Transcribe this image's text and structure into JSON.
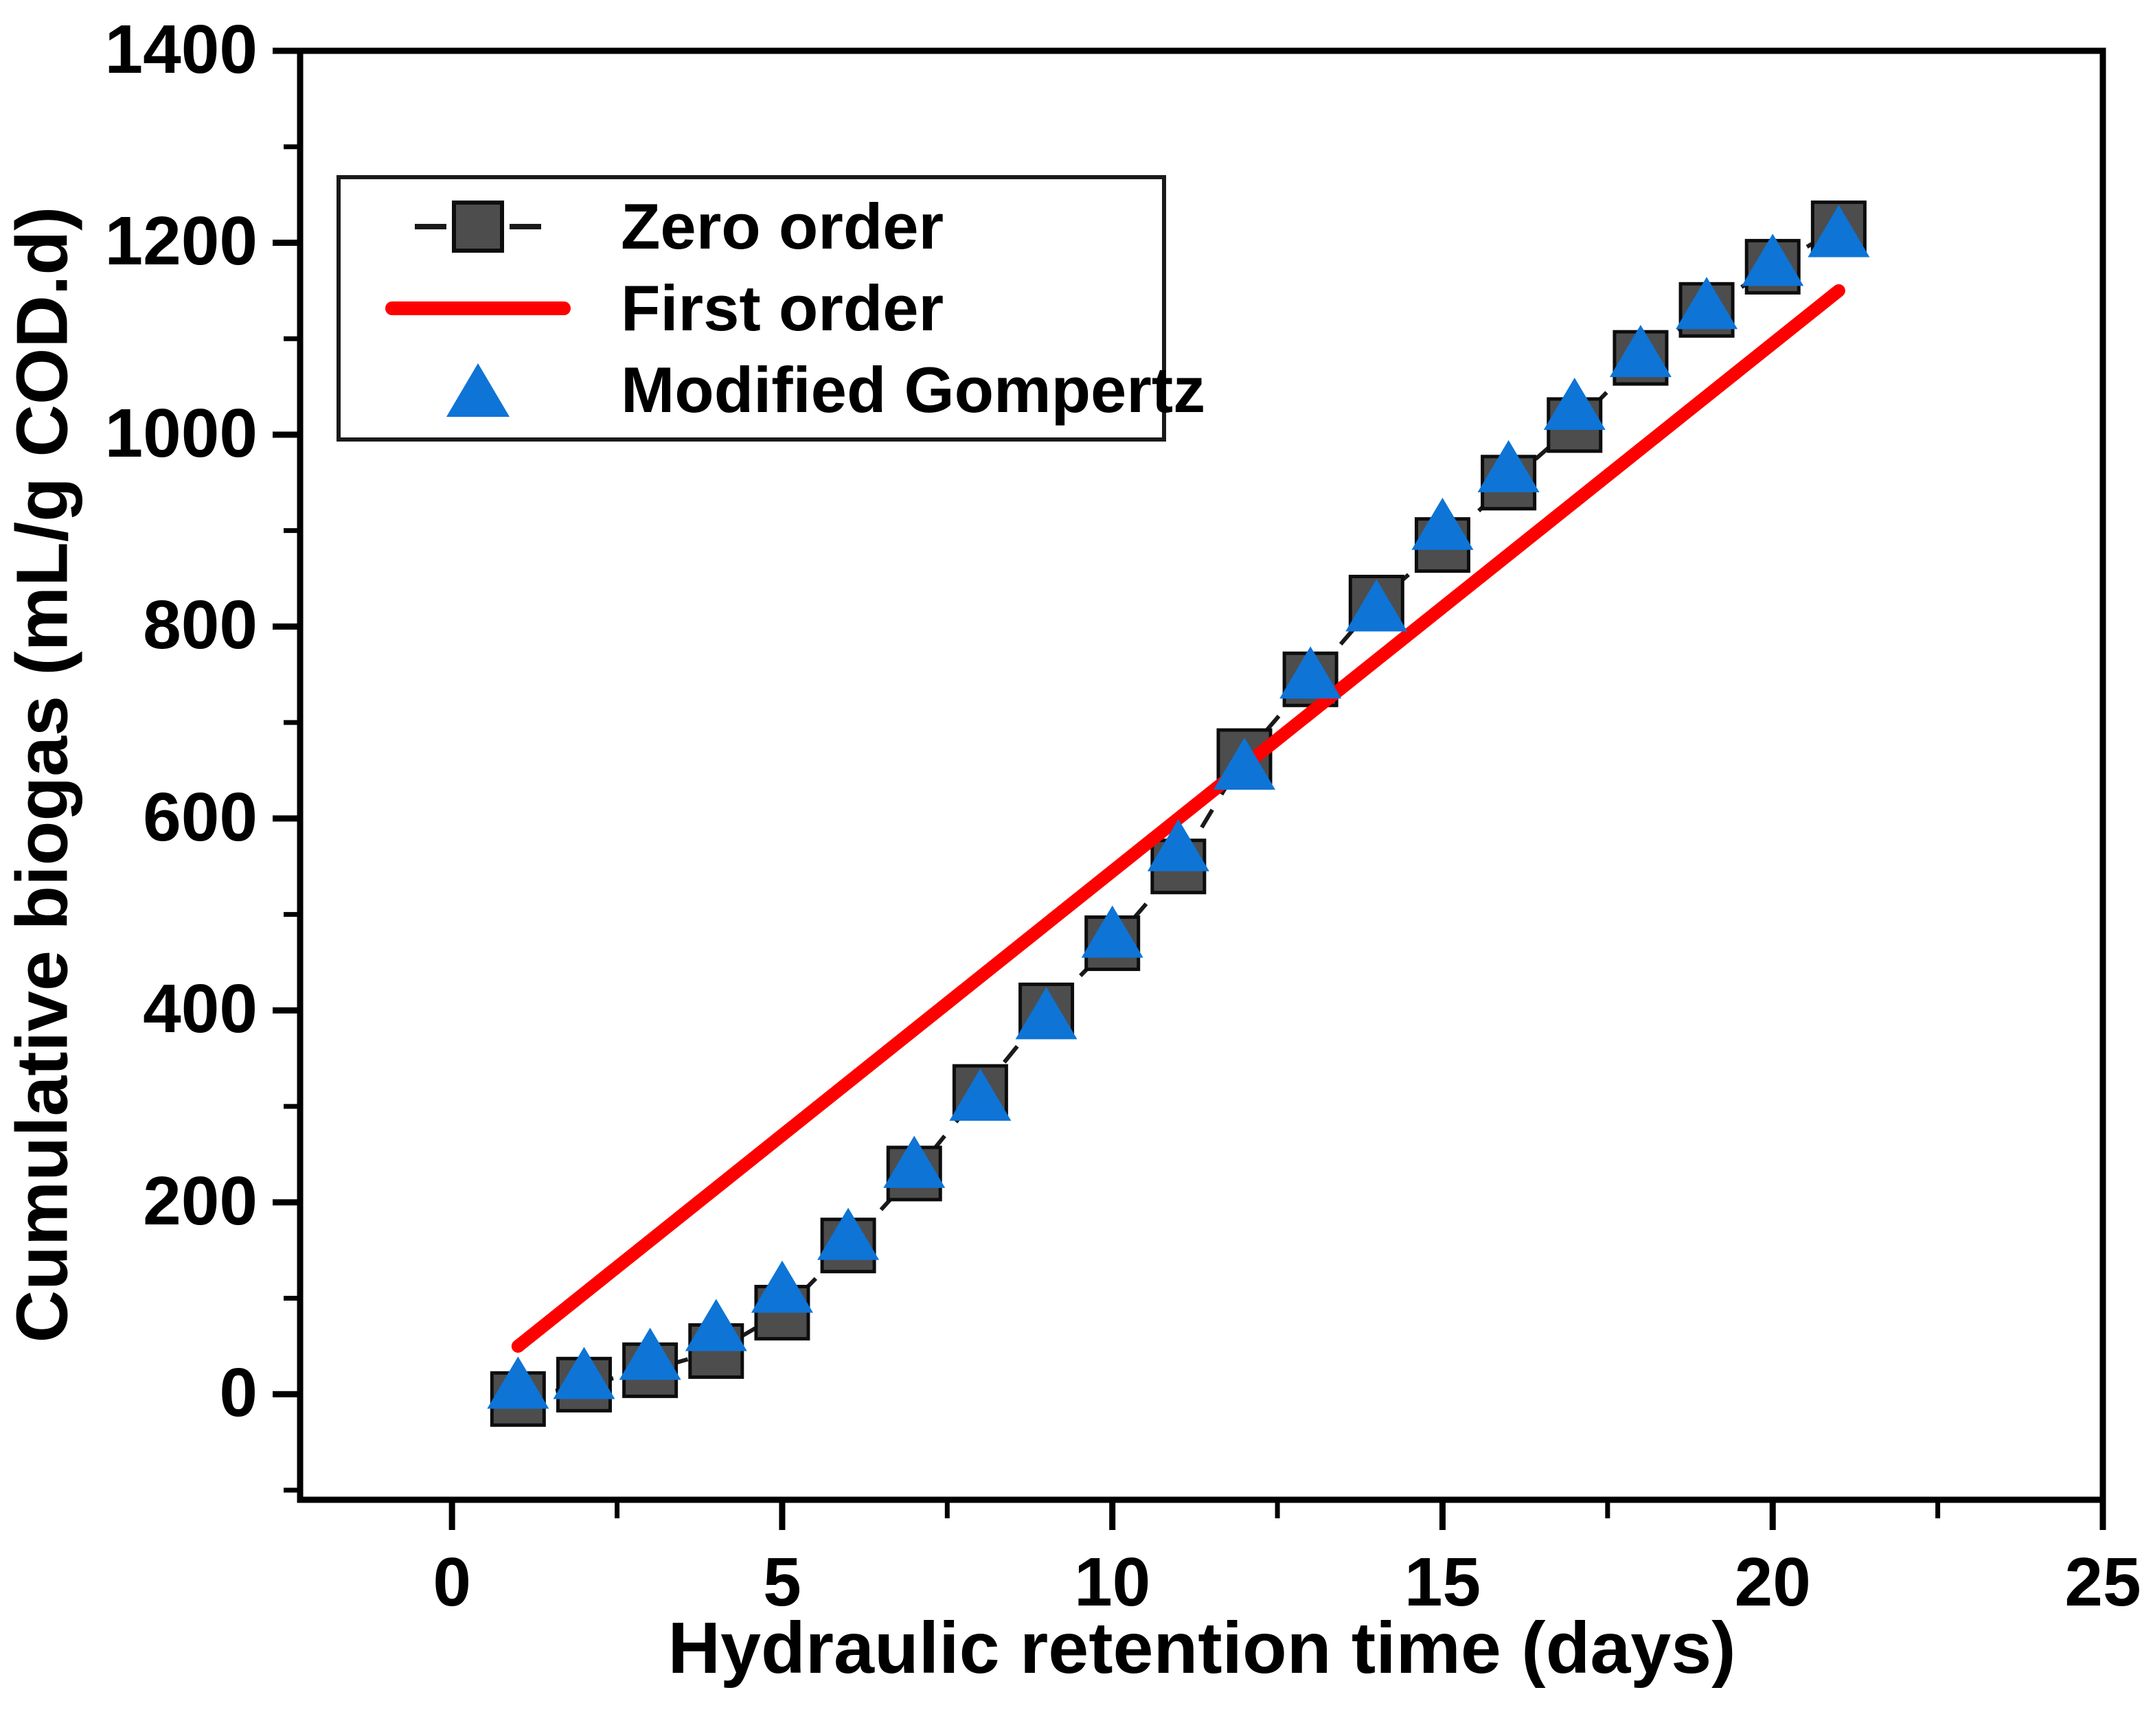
{
  "figure": {
    "background_color": "#ffffff",
    "text_color": "#000000",
    "frame_color": "#000000"
  },
  "chart_data": {
    "type": "scatter",
    "title": "",
    "xlabel": "Hydraulic retention time (days)",
    "ylabel": "Cumulative biogas (mL/g COD.d)",
    "xlim": [
      -2.3,
      25
    ],
    "ylim": [
      -110,
      1400
    ],
    "x_major_ticks": [
      0,
      5,
      10,
      15,
      20,
      25
    ],
    "x_minor_ticks": [
      2.5,
      7.5,
      12.5,
      17.5,
      22.5
    ],
    "y_major_ticks": [
      0,
      200,
      400,
      600,
      800,
      1000,
      1200,
      1400
    ],
    "y_minor_ticks": [
      -100,
      100,
      300,
      500,
      700,
      900,
      1100,
      1300
    ],
    "grid": false,
    "legend_position": "top-left",
    "x": [
      1,
      2,
      3,
      4,
      5,
      6,
      7,
      8,
      9,
      10,
      11,
      12,
      13,
      14,
      15,
      16,
      17,
      18,
      19,
      20,
      21
    ],
    "series": [
      {
        "name": "Zero order",
        "render": "scatter-dashed-line",
        "marker": "square",
        "marker_color": "#4d4d4d",
        "marker_edge_color": "#0d0d0d",
        "line_color": "#1a1a1a",
        "line_style": "dashed",
        "values": [
          -5,
          10,
          25,
          45,
          85,
          155,
          230,
          315,
          400,
          470,
          550,
          665,
          745,
          825,
          885,
          950,
          1010,
          1080,
          1130,
          1175,
          1215
        ]
      },
      {
        "name": "First order",
        "render": "line",
        "line_color": "#ff0000",
        "line_style": "solid",
        "x": [
          1,
          21
        ],
        "values": [
          50,
          1150
        ]
      },
      {
        "name": "Modified Gompertz",
        "render": "scatter",
        "marker": "triangle",
        "marker_color": "#0e74d6",
        "values": [
          10,
          20,
          40,
          70,
          110,
          165,
          240,
          310,
          395,
          480,
          570,
          655,
          750,
          820,
          905,
          965,
          1030,
          1085,
          1135,
          1180,
          1210
        ]
      }
    ]
  }
}
